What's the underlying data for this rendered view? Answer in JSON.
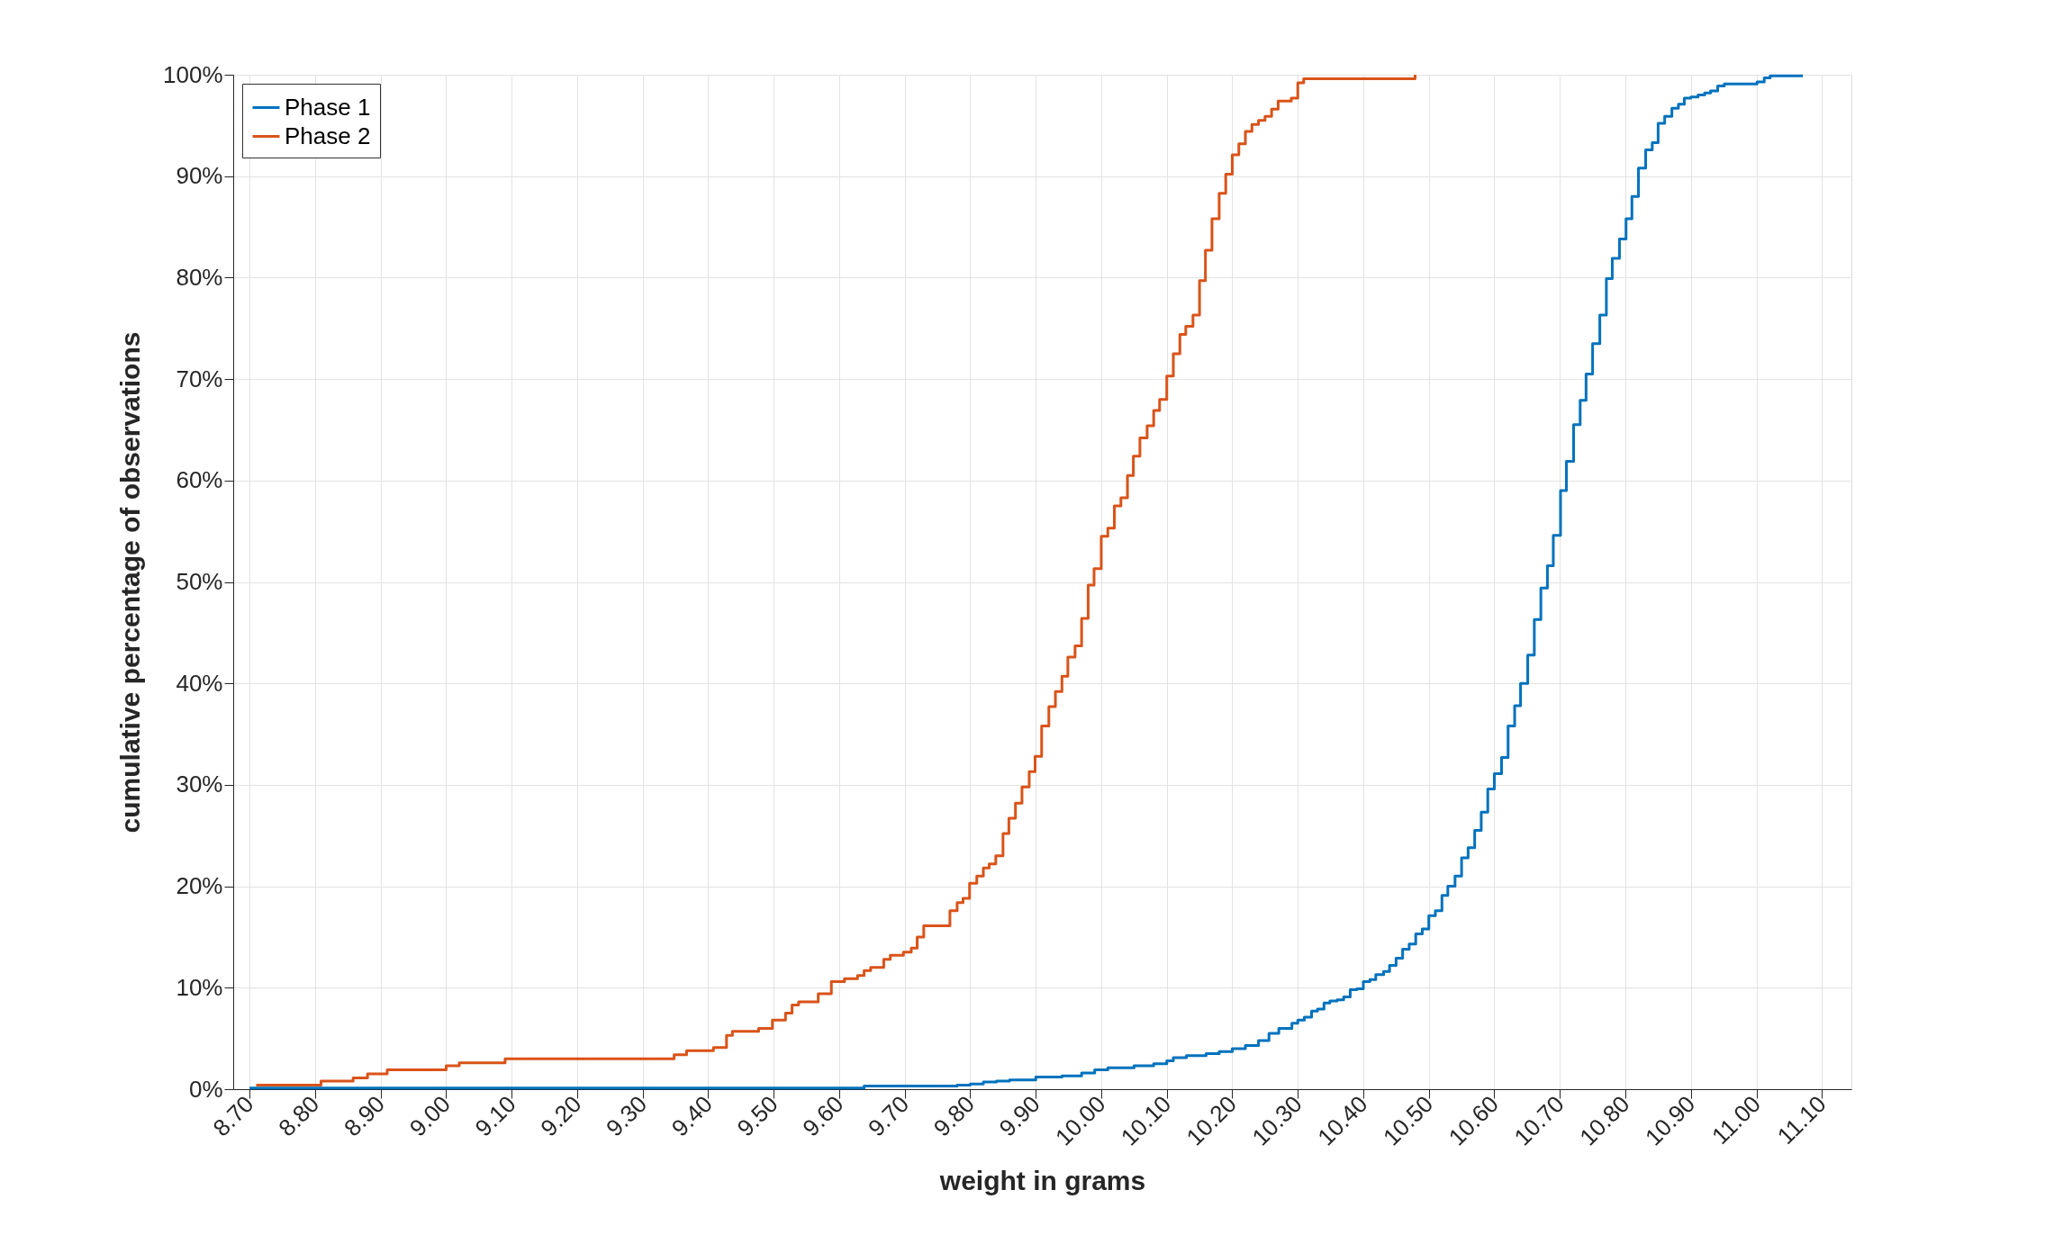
{
  "chart_data": {
    "type": "step",
    "xlabel": "weight in grams",
    "ylabel": "cumulative percentage of observations",
    "xlim": [
      8.675,
      11.145
    ],
    "ylim": [
      0,
      100
    ],
    "xticks": [
      {
        "value": 8.7,
        "label": "8.70"
      },
      {
        "value": 8.8,
        "label": "8.80"
      },
      {
        "value": 8.9,
        "label": "8.90"
      },
      {
        "value": 9.0,
        "label": "9.00"
      },
      {
        "value": 9.1,
        "label": "9.10"
      },
      {
        "value": 9.2,
        "label": "9.20"
      },
      {
        "value": 9.3,
        "label": "9.30"
      },
      {
        "value": 9.4,
        "label": "9.40"
      },
      {
        "value": 9.5,
        "label": "9.50"
      },
      {
        "value": 9.6,
        "label": "9.60"
      },
      {
        "value": 9.7,
        "label": "9.70"
      },
      {
        "value": 9.8,
        "label": "9.80"
      },
      {
        "value": 9.9,
        "label": "9.90"
      },
      {
        "value": 10.0,
        "label": "10.00"
      },
      {
        "value": 10.1,
        "label": "10.10"
      },
      {
        "value": 10.2,
        "label": "10.20"
      },
      {
        "value": 10.3,
        "label": "10.30"
      },
      {
        "value": 10.4,
        "label": "10.40"
      },
      {
        "value": 10.5,
        "label": "10.50"
      },
      {
        "value": 10.6,
        "label": "10.60"
      },
      {
        "value": 10.7,
        "label": "10.70"
      },
      {
        "value": 10.8,
        "label": "10.80"
      },
      {
        "value": 10.9,
        "label": "10.90"
      },
      {
        "value": 11.0,
        "label": "11.00"
      },
      {
        "value": 11.1,
        "label": "11.10"
      }
    ],
    "yticks": [
      {
        "value": 0,
        "label": "0%"
      },
      {
        "value": 10,
        "label": "10%"
      },
      {
        "value": 20,
        "label": "20%"
      },
      {
        "value": 30,
        "label": "30%"
      },
      {
        "value": 40,
        "label": "40%"
      },
      {
        "value": 50,
        "label": "50%"
      },
      {
        "value": 60,
        "label": "60%"
      },
      {
        "value": 70,
        "label": "70%"
      },
      {
        "value": 80,
        "label": "80%"
      },
      {
        "value": 90,
        "label": "90%"
      },
      {
        "value": 100,
        "label": "100%"
      }
    ],
    "grid": true,
    "legend": "top left",
    "line_style": "solid",
    "series": [
      {
        "name": "Phase 1",
        "color": "#0072bd",
        "x": [
          8.7,
          9.638,
          9.78,
          9.8,
          9.82,
          9.84,
          9.86,
          9.9,
          9.94,
          9.97,
          9.99,
          10.01,
          10.05,
          10.08,
          10.1,
          10.11,
          10.13,
          10.16,
          10.18,
          10.2,
          10.22,
          10.24,
          10.256,
          10.271,
          10.291,
          10.3,
          10.31,
          10.321,
          10.33,
          10.34,
          10.349,
          10.36,
          10.37,
          10.38,
          10.39,
          10.4,
          10.41,
          10.419,
          10.431,
          10.44,
          10.45,
          10.46,
          10.47,
          10.48,
          10.49,
          10.5,
          10.51,
          10.52,
          10.529,
          10.54,
          10.55,
          10.56,
          10.57,
          10.58,
          10.59,
          10.6,
          10.611,
          10.621,
          10.631,
          10.64,
          10.651,
          10.661,
          10.671,
          10.681,
          10.69,
          10.701,
          10.71,
          10.721,
          10.731,
          10.74,
          10.75,
          10.761,
          10.771,
          10.78,
          10.791,
          10.801,
          10.81,
          10.82,
          10.831,
          10.841,
          10.85,
          10.86,
          10.871,
          10.881,
          10.89,
          10.9,
          10.911,
          10.921,
          10.93,
          10.941,
          10.951,
          11.001,
          11.012,
          11.021,
          11.071
        ],
        "values": [
          0.1,
          0.3,
          0.4,
          0.5,
          0.7,
          0.8,
          0.9,
          1.2,
          1.3,
          1.6,
          1.9,
          2.1,
          2.3,
          2.5,
          2.8,
          3.1,
          3.3,
          3.5,
          3.7,
          4.0,
          4.3,
          4.8,
          5.5,
          6.0,
          6.5,
          6.8,
          7.1,
          7.7,
          7.9,
          8.5,
          8.7,
          8.8,
          9.1,
          9.8,
          9.9,
          10.6,
          10.8,
          11.3,
          11.6,
          12.2,
          12.9,
          13.8,
          14.3,
          15.3,
          15.8,
          17.1,
          17.6,
          19.1,
          20.0,
          21.0,
          22.8,
          23.8,
          25.5,
          27.3,
          29.6,
          31.1,
          32.7,
          35.8,
          37.8,
          40.0,
          42.8,
          46.3,
          49.4,
          51.6,
          54.6,
          59.0,
          61.9,
          65.5,
          67.9,
          70.5,
          73.5,
          76.3,
          79.9,
          81.9,
          83.8,
          85.8,
          88.0,
          90.8,
          92.6,
          93.3,
          95.2,
          95.9,
          96.7,
          97.1,
          97.7,
          97.8,
          98.0,
          98.2,
          98.4,
          98.9,
          99.1,
          99.3,
          99.7,
          99.9,
          99.9
        ]
      },
      {
        "name": "Phase 2",
        "color": "#d95319",
        "x": [
          8.71,
          8.809,
          8.858,
          8.88,
          8.91,
          9.0,
          9.02,
          9.09,
          9.348,
          9.367,
          9.408,
          9.428,
          9.437,
          9.477,
          9.498,
          9.518,
          9.528,
          9.538,
          9.568,
          9.588,
          9.608,
          9.628,
          9.638,
          9.648,
          9.668,
          9.678,
          9.698,
          9.71,
          9.719,
          9.729,
          9.769,
          9.78,
          9.789,
          9.799,
          9.81,
          9.82,
          9.829,
          9.839,
          9.85,
          9.859,
          9.869,
          9.879,
          9.89,
          9.899,
          9.909,
          9.92,
          9.93,
          9.94,
          9.949,
          9.96,
          9.97,
          9.98,
          9.989,
          10.0,
          10.01,
          10.02,
          10.03,
          10.04,
          10.049,
          10.059,
          10.07,
          10.08,
          10.089,
          10.1,
          10.11,
          10.12,
          10.129,
          10.14,
          10.15,
          10.159,
          10.169,
          10.18,
          10.19,
          10.2,
          10.21,
          10.22,
          10.23,
          10.24,
          10.25,
          10.26,
          10.27,
          10.29,
          10.3,
          10.309,
          10.479
        ],
        "values": [
          0.4,
          0.8,
          1.1,
          1.5,
          1.9,
          2.3,
          2.6,
          3.0,
          3.4,
          3.8,
          4.1,
          5.3,
          5.7,
          6.0,
          6.8,
          7.5,
          8.3,
          8.6,
          9.4,
          10.6,
          10.9,
          11.2,
          11.7,
          12.0,
          12.8,
          13.2,
          13.5,
          13.9,
          15.0,
          16.1,
          17.6,
          18.4,
          18.8,
          20.3,
          21.0,
          21.8,
          22.2,
          23.0,
          25.2,
          26.7,
          28.2,
          29.8,
          31.3,
          32.8,
          35.8,
          37.7,
          39.2,
          40.7,
          42.6,
          43.7,
          46.4,
          49.7,
          51.3,
          54.5,
          55.3,
          57.5,
          58.3,
          60.5,
          62.4,
          64.2,
          65.4,
          66.9,
          68.0,
          70.3,
          72.5,
          74.4,
          75.2,
          76.3,
          79.7,
          82.7,
          85.8,
          88.3,
          90.2,
          92.1,
          93.2,
          94.4,
          95.1,
          95.5,
          95.9,
          96.6,
          97.4,
          97.7,
          99.2,
          99.6,
          100
        ]
      }
    ]
  }
}
